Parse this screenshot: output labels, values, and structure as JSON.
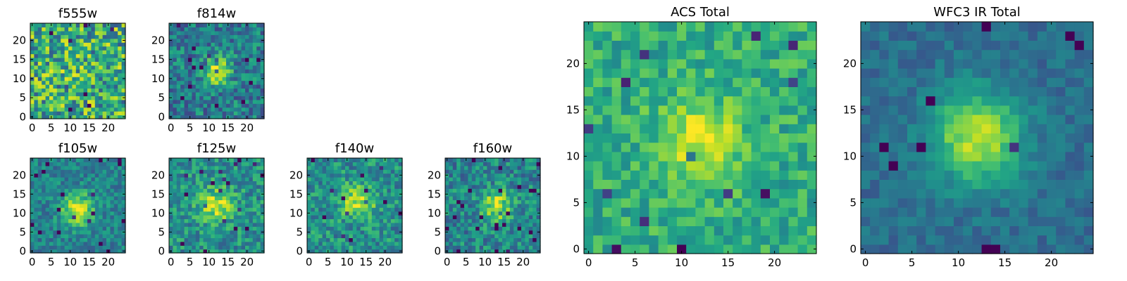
{
  "chart_data": [
    {
      "type": "heatmap",
      "title": "f555w",
      "xlim": [
        0,
        24
      ],
      "ylim": [
        0,
        24
      ],
      "xticks": [
        0,
        5,
        10,
        15,
        20
      ],
      "yticks": [
        0,
        5,
        10,
        15,
        20
      ],
      "noise": 0.34,
      "source_peak": 0.05,
      "source_center": [
        12,
        11
      ],
      "source_width": 3.0,
      "base": 0.62,
      "seed": 11
    },
    {
      "type": "heatmap",
      "title": "f814w",
      "xlim": [
        0,
        24
      ],
      "ylim": [
        0,
        24
      ],
      "xticks": [
        0,
        5,
        10,
        15,
        20
      ],
      "yticks": [
        0,
        5,
        10,
        15,
        20
      ],
      "noise": 0.22,
      "source_peak": 0.5,
      "source_center": [
        12,
        12
      ],
      "source_width": 2.6,
      "base": 0.42,
      "seed": 23
    },
    {
      "type": "heatmap",
      "title": "f105w",
      "xlim": [
        0,
        24
      ],
      "ylim": [
        0,
        24
      ],
      "xticks": [
        0,
        5,
        10,
        15,
        20
      ],
      "yticks": [
        0,
        5,
        10,
        15,
        20
      ],
      "noise": 0.16,
      "source_peak": 0.52,
      "source_center": [
        12,
        11
      ],
      "source_width": 3.0,
      "base": 0.44,
      "seed": 37
    },
    {
      "type": "heatmap",
      "title": "f125w",
      "xlim": [
        0,
        24
      ],
      "ylim": [
        0,
        24
      ],
      "xticks": [
        0,
        5,
        10,
        15,
        20
      ],
      "yticks": [
        0,
        5,
        10,
        15,
        20
      ],
      "noise": 0.2,
      "source_peak": 0.4,
      "source_center": [
        12,
        12
      ],
      "source_width": 3.2,
      "base": 0.5,
      "seed": 41
    },
    {
      "type": "heatmap",
      "title": "f140w",
      "xlim": [
        0,
        24
      ],
      "ylim": [
        0,
        24
      ],
      "xticks": [
        0,
        5,
        10,
        15,
        20
      ],
      "yticks": [
        0,
        5,
        10,
        15,
        20
      ],
      "noise": 0.2,
      "source_peak": 0.42,
      "source_center": [
        13,
        13
      ],
      "source_width": 3.0,
      "base": 0.5,
      "seed": 53
    },
    {
      "type": "heatmap",
      "title": "f160w",
      "xlim": [
        0,
        24
      ],
      "ylim": [
        0,
        24
      ],
      "xticks": [
        0,
        5,
        10,
        15,
        20
      ],
      "yticks": [
        0,
        5,
        10,
        15,
        20
      ],
      "noise": 0.2,
      "source_peak": 0.45,
      "source_center": [
        13,
        12
      ],
      "source_width": 2.8,
      "base": 0.46,
      "seed": 67
    },
    {
      "type": "heatmap",
      "title": "ACS Total",
      "xlim": [
        0,
        24
      ],
      "ylim": [
        0,
        24
      ],
      "xticks": [
        0,
        5,
        10,
        15,
        20
      ],
      "yticks": [
        0,
        5,
        10,
        15,
        20
      ],
      "noise": 0.16,
      "source_peak": 0.35,
      "source_center": [
        12,
        12
      ],
      "source_width": 3.0,
      "base": 0.62,
      "seed": 79
    },
    {
      "type": "heatmap",
      "title": "WFC3 IR Total",
      "xlim": [
        0,
        24
      ],
      "ylim": [
        0,
        24
      ],
      "xticks": [
        0,
        5,
        10,
        15,
        20
      ],
      "yticks": [
        0,
        5,
        10,
        15,
        20
      ],
      "noise": 0.09,
      "source_peak": 0.55,
      "source_center": [
        12,
        12
      ],
      "source_width": 3.4,
      "base": 0.36,
      "seed": 97
    }
  ]
}
